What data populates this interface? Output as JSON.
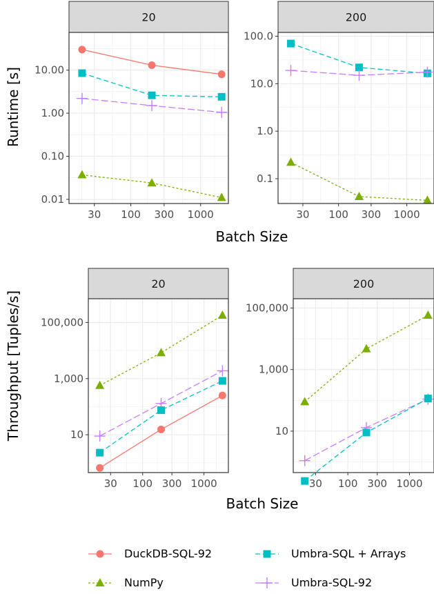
{
  "colors": {
    "duckdb": "#f8766d",
    "numpy": "#7cae00",
    "umbra_arrays": "#00bfc4",
    "umbra_92": "#c77cff",
    "strip_bg": "#d9d9d9",
    "grid": "#ebebeb"
  },
  "legend": [
    {
      "name": "DuckDB-SQL-92",
      "series": "duckdb"
    },
    {
      "name": "Umbra-SQL + Arrays",
      "series": "umbra_arrays"
    },
    {
      "name": "NumPy",
      "series": "numpy"
    },
    {
      "name": "Umbra-SQL-92",
      "series": "umbra_92"
    }
  ],
  "chart_data": [
    {
      "type": "line",
      "facet": "20",
      "xlabel": "Batch Size",
      "ylabel": "Runtime [s]",
      "xscale": "log",
      "yscale": "log",
      "x_ticks": [
        30,
        100,
        300,
        1000
      ],
      "x_tick_labels": [
        "30",
        "100",
        "300",
        "1000"
      ],
      "y_ticks": [
        0.01,
        0.1,
        1,
        10
      ],
      "y_tick_labels": [
        "0.01",
        "0.10",
        "1.00",
        "10.00"
      ],
      "xlim": [
        13,
        2500
      ],
      "ylim": [
        0.008,
        75
      ],
      "x": [
        20,
        200,
        2000
      ],
      "series": [
        {
          "key": "duckdb",
          "name": "DuckDB-SQL-92",
          "values": [
            30,
            13,
            8
          ]
        },
        {
          "key": "umbra_arrays",
          "name": "Umbra-SQL + Arrays",
          "values": [
            8.5,
            2.6,
            2.4
          ]
        },
        {
          "key": "umbra_92",
          "name": "Umbra-SQL-92",
          "values": [
            2.2,
            1.5,
            1.05
          ]
        },
        {
          "key": "numpy",
          "name": "NumPy",
          "values": [
            0.037,
            0.024,
            0.011
          ]
        }
      ]
    },
    {
      "type": "line",
      "facet": "200",
      "xlabel": "Batch Size",
      "ylabel": "Runtime [s]",
      "xscale": "log",
      "yscale": "log",
      "x_ticks": [
        30,
        100,
        300,
        1000
      ],
      "x_tick_labels": [
        "30",
        "100",
        "300",
        "1000"
      ],
      "y_ticks": [
        0.1,
        1,
        10,
        100
      ],
      "y_tick_labels": [
        "0.1",
        "1.0",
        "10.0",
        "100.0"
      ],
      "xlim": [
        13,
        2500
      ],
      "ylim": [
        0.03,
        120
      ],
      "x": [
        20,
        200,
        2000
      ],
      "series": [
        {
          "key": "umbra_arrays",
          "name": "Umbra-SQL + Arrays",
          "values": [
            70,
            22,
            16.5
          ]
        },
        {
          "key": "umbra_92",
          "name": "Umbra-SQL-92",
          "values": [
            19,
            15,
            17.5
          ]
        },
        {
          "key": "numpy",
          "name": "NumPy",
          "values": [
            0.22,
            0.042,
            0.035
          ]
        }
      ]
    },
    {
      "type": "line",
      "facet": "20",
      "xlabel": "Batch Size",
      "ylabel": "Throughput [Tuples/s]",
      "xscale": "log",
      "yscale": "log",
      "x_ticks": [
        30,
        100,
        300,
        1000
      ],
      "x_tick_labels": [
        "30",
        "100",
        "300",
        "1000"
      ],
      "y_ticks": [
        10,
        1000,
        100000
      ],
      "y_tick_labels": [
        "10",
        "1,000",
        "100,000"
      ],
      "xlim": [
        13,
        2500
      ],
      "ylim": [
        0.45,
        700000
      ],
      "x": [
        20,
        200,
        2000
      ],
      "series": [
        {
          "key": "numpy",
          "name": "NumPy",
          "values": [
            570,
            8300,
            180000
          ]
        },
        {
          "key": "umbra_92",
          "name": "Umbra-SQL-92",
          "values": [
            9,
            130,
            1900
          ]
        },
        {
          "key": "umbra_arrays",
          "name": "Umbra-SQL + Arrays",
          "values": [
            2.3,
            75,
            830
          ]
        },
        {
          "key": "duckdb",
          "name": "DuckDB-SQL-92",
          "values": [
            0.66,
            15.5,
            250
          ]
        }
      ]
    },
    {
      "type": "line",
      "facet": "200",
      "xlabel": "Batch Size",
      "ylabel": "Throughput [Tuples/s]",
      "xscale": "log",
      "yscale": "log",
      "x_ticks": [
        30,
        100,
        300,
        1000
      ],
      "x_tick_labels": [
        "30",
        "100",
        "300",
        "1000"
      ],
      "y_ticks": [
        10,
        1000,
        100000
      ],
      "y_tick_labels": [
        "10",
        "1,000",
        "100,000"
      ],
      "xlim": [
        13,
        2500
      ],
      "ylim": [
        0.45,
        200000
      ],
      "x": [
        20,
        200,
        2000
      ],
      "series": [
        {
          "key": "numpy",
          "name": "NumPy",
          "values": [
            90,
            4700,
            58000
          ]
        },
        {
          "key": "umbra_92",
          "name": "Umbra-SQL-92",
          "values": [
            1.1,
            13,
            110
          ]
        },
        {
          "key": "umbra_arrays",
          "name": "Umbra-SQL + Arrays",
          "values": [
            0.24,
            9,
            115
          ]
        }
      ]
    }
  ]
}
